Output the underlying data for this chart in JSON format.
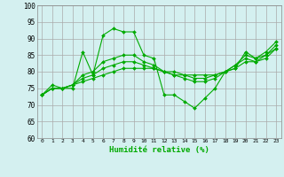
{
  "xlabel": "Humidité relative (%)",
  "background_color": "#d4f0f0",
  "grid_color": "#aaaaaa",
  "line_color": "#00aa00",
  "ylim": [
    60,
    100
  ],
  "xlim": [
    -0.5,
    23.5
  ],
  "yticks": [
    60,
    65,
    70,
    75,
    80,
    85,
    90,
    95,
    100
  ],
  "xticks": [
    0,
    1,
    2,
    3,
    4,
    5,
    6,
    7,
    8,
    9,
    10,
    11,
    12,
    13,
    14,
    15,
    16,
    17,
    18,
    19,
    20,
    21,
    22,
    23
  ],
  "series": [
    [
      73,
      76,
      75,
      75,
      86,
      79,
      91,
      93,
      92,
      92,
      85,
      84,
      73,
      73,
      71,
      69,
      72,
      75,
      80,
      81,
      86,
      84,
      86,
      89
    ],
    [
      73,
      75,
      75,
      76,
      79,
      80,
      83,
      84,
      85,
      85,
      83,
      82,
      80,
      79,
      78,
      77,
      77,
      78,
      80,
      82,
      85,
      84,
      85,
      88
    ],
    [
      73,
      75,
      75,
      76,
      78,
      79,
      81,
      82,
      83,
      83,
      82,
      81,
      80,
      79,
      79,
      78,
      78,
      79,
      80,
      82,
      84,
      83,
      85,
      87
    ],
    [
      73,
      75,
      75,
      76,
      77,
      78,
      79,
      80,
      81,
      81,
      81,
      81,
      80,
      80,
      79,
      79,
      79,
      79,
      80,
      81,
      83,
      83,
      84,
      87
    ]
  ],
  "figsize": [
    3.2,
    2.0
  ],
  "dpi": 100
}
